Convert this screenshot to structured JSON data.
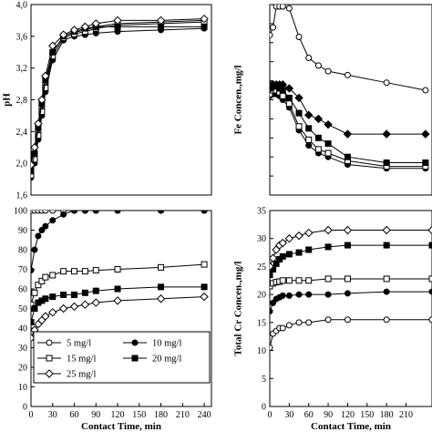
{
  "chart_data": [
    {
      "id": "ph",
      "type": "line",
      "ylabel": "pH",
      "xlabel": "",
      "xlim": [
        0,
        250
      ],
      "ylim": [
        1.6,
        4.0
      ],
      "xticks": [],
      "yticks": [
        1.6,
        2.0,
        2.4,
        2.8,
        3.2,
        3.6,
        4.0
      ],
      "ytick_labels": [
        "1,6",
        "2,0",
        "2,4",
        "2,8",
        "3,2",
        "3,6",
        "4,0"
      ],
      "x": [
        0,
        5,
        10,
        15,
        20,
        30,
        45,
        60,
        75,
        90,
        120,
        180,
        240
      ],
      "series": [
        {
          "marker": "circle-open",
          "values": [
            1.95,
            2.1,
            2.4,
            2.7,
            3.0,
            3.4,
            3.6,
            3.65,
            3.68,
            3.72,
            3.76,
            3.78,
            3.8
          ]
        },
        {
          "marker": "circle-filled",
          "values": [
            1.82,
            2.0,
            2.3,
            2.6,
            2.9,
            3.3,
            3.55,
            3.6,
            3.62,
            3.64,
            3.66,
            3.68,
            3.7
          ]
        },
        {
          "marker": "square-open",
          "values": [
            1.85,
            2.05,
            2.35,
            2.65,
            2.95,
            3.35,
            3.58,
            3.63,
            3.66,
            3.7,
            3.74,
            3.76,
            3.78
          ]
        },
        {
          "marker": "square-filled",
          "values": [
            1.9,
            2.12,
            2.45,
            2.75,
            3.05,
            3.4,
            3.6,
            3.66,
            3.7,
            3.72,
            3.72,
            3.72,
            3.72
          ]
        },
        {
          "marker": "diamond-open",
          "values": [
            1.98,
            2.2,
            2.5,
            2.8,
            3.1,
            3.48,
            3.62,
            3.68,
            3.72,
            3.76,
            3.8,
            3.8,
            3.82
          ]
        }
      ]
    },
    {
      "id": "fe",
      "type": "line",
      "ylabel": "Fe Concen.,mg/l",
      "xlabel": "",
      "xlim": [
        0,
        250
      ],
      "ylim": [
        0,
        10
      ],
      "xticks": [],
      "yticks": [
        0,
        1,
        2,
        3,
        4,
        5,
        6,
        7,
        8,
        9,
        10
      ],
      "ytick_labels": [],
      "x": [
        0,
        5,
        10,
        15,
        20,
        30,
        45,
        60,
        75,
        90,
        120,
        180,
        240
      ],
      "series": [
        {
          "marker": "circle-open",
          "values": [
            8.4,
            8.8,
            9.9,
            9.9,
            9.9,
            9.8,
            8.3,
            7.2,
            6.8,
            6.5,
            6.3,
            5.9,
            5.5
          ]
        },
        {
          "marker": "circle-filled",
          "values": [
            5.2,
            5.3,
            5.3,
            5.2,
            5.0,
            4.6,
            3.4,
            2.6,
            2.2,
            2.0,
            1.6,
            1.4,
            1.4
          ]
        },
        {
          "marker": "square-open",
          "values": [
            5.3,
            5.5,
            5.5,
            5.4,
            5.2,
            4.8,
            3.6,
            2.9,
            2.4,
            2.2,
            1.8,
            1.5,
            1.5
          ]
        },
        {
          "marker": "square-filled",
          "values": [
            5.6,
            5.7,
            5.7,
            5.6,
            5.5,
            5.1,
            4.3,
            3.5,
            3.0,
            2.7,
            2.0,
            1.7,
            1.7
          ]
        },
        {
          "marker": "diamond-filled",
          "values": [
            5.8,
            5.8,
            5.8,
            5.8,
            5.8,
            5.6,
            5.1,
            4.2,
            4.0,
            3.7,
            3.2,
            3.2,
            3.2
          ]
        }
      ]
    },
    {
      "id": "removal",
      "type": "line",
      "ylabel": "",
      "xlabel": "Contact Time, min",
      "xlim": [
        0,
        250
      ],
      "ylim": [
        0,
        100
      ],
      "xticks": [
        0,
        30,
        60,
        90,
        120,
        150,
        180,
        210,
        240
      ],
      "yticks": [
        0,
        10,
        20,
        30,
        40,
        50,
        60,
        70,
        80,
        90,
        100
      ],
      "ytick_labels": [
        "0",
        "10",
        "20",
        "30",
        "40",
        "50",
        "60",
        "70",
        "80",
        "90",
        "100"
      ],
      "x": [
        0,
        5,
        10,
        15,
        20,
        30,
        45,
        60,
        75,
        90,
        120,
        180,
        240
      ],
      "series": [
        {
          "name": "5 mg/l",
          "marker": "circle-open",
          "values": [
            100,
            100,
            100,
            100,
            100,
            100,
            100,
            100,
            100,
            100,
            100,
            100,
            100
          ]
        },
        {
          "name": "10 mg/l",
          "marker": "circle-filled",
          "values": [
            69.5,
            80,
            87,
            90,
            92,
            95,
            98,
            100,
            100,
            100,
            100,
            100,
            100
          ]
        },
        {
          "name": "15 mg/l",
          "marker": "square-open",
          "values": [
            52,
            58,
            62,
            64,
            66,
            67,
            69,
            69,
            69,
            69.5,
            70,
            71,
            72.5
          ]
        },
        {
          "name": "20 mg/l",
          "marker": "square-filled",
          "values": [
            43,
            50,
            53,
            54,
            55,
            56,
            57,
            57,
            58,
            59,
            60,
            61,
            61
          ]
        },
        {
          "name": "25 mg/l",
          "marker": "diamond-open",
          "values": [
            35,
            39,
            42,
            44,
            46,
            48,
            50,
            51,
            52,
            53,
            54,
            55,
            56
          ]
        }
      ]
    },
    {
      "id": "cr",
      "type": "line",
      "ylabel": "Total Cr Concen.,mg/l",
      "xlabel": "Contact Time, min",
      "xlim": [
        0,
        250
      ],
      "ylim": [
        0,
        35
      ],
      "xticks": [
        0,
        30,
        60,
        90,
        120,
        150,
        180,
        210
      ],
      "yticks": [
        0,
        5,
        10,
        15,
        20,
        25,
        30,
        35
      ],
      "ytick_labels": [
        "0",
        "5",
        "10",
        "15",
        "20",
        "25",
        "30",
        "35"
      ],
      "x": [
        0,
        5,
        10,
        15,
        20,
        30,
        45,
        60,
        90,
        120,
        180,
        250
      ],
      "series": [
        {
          "marker": "circle-open",
          "values": [
            10.5,
            13,
            13.5,
            14,
            14,
            14.5,
            15,
            15,
            15.5,
            15.5,
            15.5,
            15.5
          ]
        },
        {
          "marker": "circle-filled",
          "values": [
            17,
            18.5,
            19.2,
            19.5,
            19.8,
            19.8,
            20,
            20,
            20,
            20.2,
            20.5,
            20.5
          ]
        },
        {
          "marker": "square-open",
          "values": [
            21.5,
            22,
            22.2,
            22.3,
            22.5,
            22.5,
            22.5,
            22.5,
            22.8,
            22.8,
            22.8,
            22.8
          ]
        },
        {
          "marker": "square-filled",
          "values": [
            23.5,
            24.5,
            25.5,
            26.3,
            26.8,
            27.2,
            27.5,
            28,
            28.5,
            28.8,
            28.8,
            28.8
          ]
        },
        {
          "marker": "diamond-open",
          "values": [
            25,
            26.5,
            28,
            28.8,
            29.2,
            30,
            30.5,
            31,
            31.5,
            31.5,
            31.5,
            31.5
          ]
        }
      ]
    }
  ]
}
